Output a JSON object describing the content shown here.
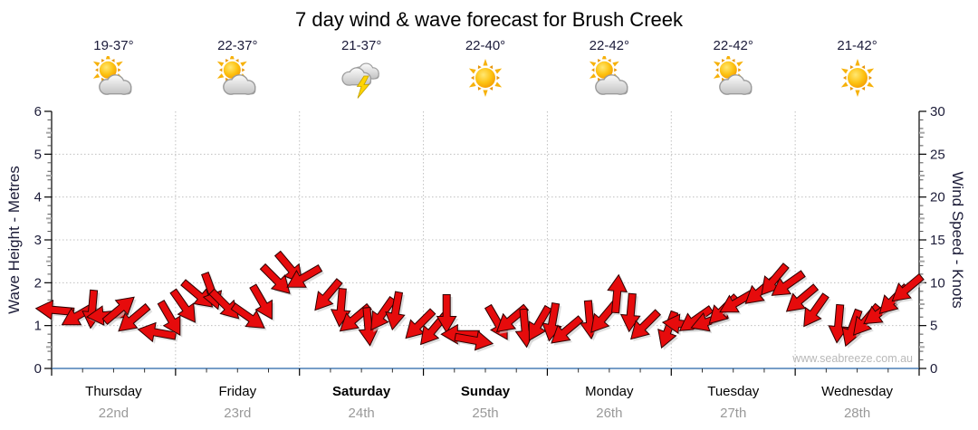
{
  "title": "7 day wind & wave forecast for Brush Creek",
  "watermark": "www.seabreeze.com.au",
  "forecast": {
    "days": [
      {
        "temps": "19-37°",
        "icon": "sun-cloud-icon"
      },
      {
        "temps": "22-37°",
        "icon": "sun-cloud-icon"
      },
      {
        "temps": "21-37°",
        "icon": "storm-icon"
      },
      {
        "temps": "22-40°",
        "icon": "sun-icon"
      },
      {
        "temps": "22-42°",
        "icon": "sun-cloud-icon"
      },
      {
        "temps": "22-42°",
        "icon": "sun-cloud-icon"
      },
      {
        "temps": "21-42°",
        "icon": "sun-icon"
      }
    ]
  },
  "chart_data": {
    "type": "wind-arrow-series",
    "title": "7 day wind & wave forecast for Brush Creek",
    "left_axis": {
      "label": "Wave Height - Metres",
      "min": 0,
      "max": 6,
      "major_step": 1
    },
    "right_axis": {
      "label": "Wind Speed - Knots",
      "min": 0,
      "max": 30,
      "major_step": 5
    },
    "days": [
      {
        "label": "Thursday",
        "date": "22nd",
        "weekend": false
      },
      {
        "label": "Friday",
        "date": "23rd",
        "weekend": false
      },
      {
        "label": "Saturday",
        "date": "24th",
        "weekend": true
      },
      {
        "label": "Sunday",
        "date": "25th",
        "weekend": true
      },
      {
        "label": "Monday",
        "date": "26th",
        "weekend": false
      },
      {
        "label": "Tuesday",
        "date": "27th",
        "weekend": false
      },
      {
        "label": "Wednesday",
        "date": "28th",
        "weekend": false
      }
    ],
    "points_per_day": 8,
    "grid": true,
    "series": [
      {
        "name": "Wind Speed",
        "unit": "knots",
        "values": [
          6.5,
          6.0,
          6.8,
          6.2,
          7.0,
          6.0,
          4.5,
          5.5,
          7.0,
          8.5,
          9.0,
          7.5,
          6.2,
          8.0,
          10.0,
          11.5,
          10.5,
          8.5,
          7.2,
          6.0,
          5.2,
          6.0,
          6.5,
          5.0,
          4.5,
          6.5,
          4.2,
          3.6,
          5.0,
          5.5,
          4.6,
          5.2,
          5.5,
          4.6,
          6.0,
          5.6,
          8.5,
          6.4,
          5.0,
          4.6,
          5.4,
          6.0,
          5.2,
          6.6,
          7.6,
          9.0,
          10.4,
          10.0,
          8.4,
          6.4,
          5.0,
          4.6,
          5.6,
          6.6,
          8.2,
          9.6
        ],
        "arrow_angles_deg": [
          185,
          150,
          95,
          175,
          320,
          140,
          190,
          60,
          55,
          40,
          70,
          45,
          35,
          60,
          45,
          50,
          150,
          130,
          95,
          140,
          85,
          125,
          100,
          135,
          130,
          90,
          180,
          10,
          60,
          140,
          85,
          120,
          100,
          140,
          85,
          130,
          275,
          95,
          135,
          110,
          185,
          145,
          160,
          135,
          150,
          140,
          130,
          145,
          140,
          125,
          95,
          110,
          130,
          145,
          135,
          140
        ]
      }
    ],
    "colors": {
      "arrow_fill": "#e60b0c",
      "arrow_outline": "#2d0000",
      "arrow_shadow": "#cccccc",
      "x_axis_line": "#4a7eb5",
      "y_axis_line": "#000000",
      "grid_line": "#c0c0c0",
      "tick_label": "#1c1c38",
      "day_text": "#000000",
      "date_text": "#999999",
      "watermark_text": "#b8b8b8"
    }
  }
}
